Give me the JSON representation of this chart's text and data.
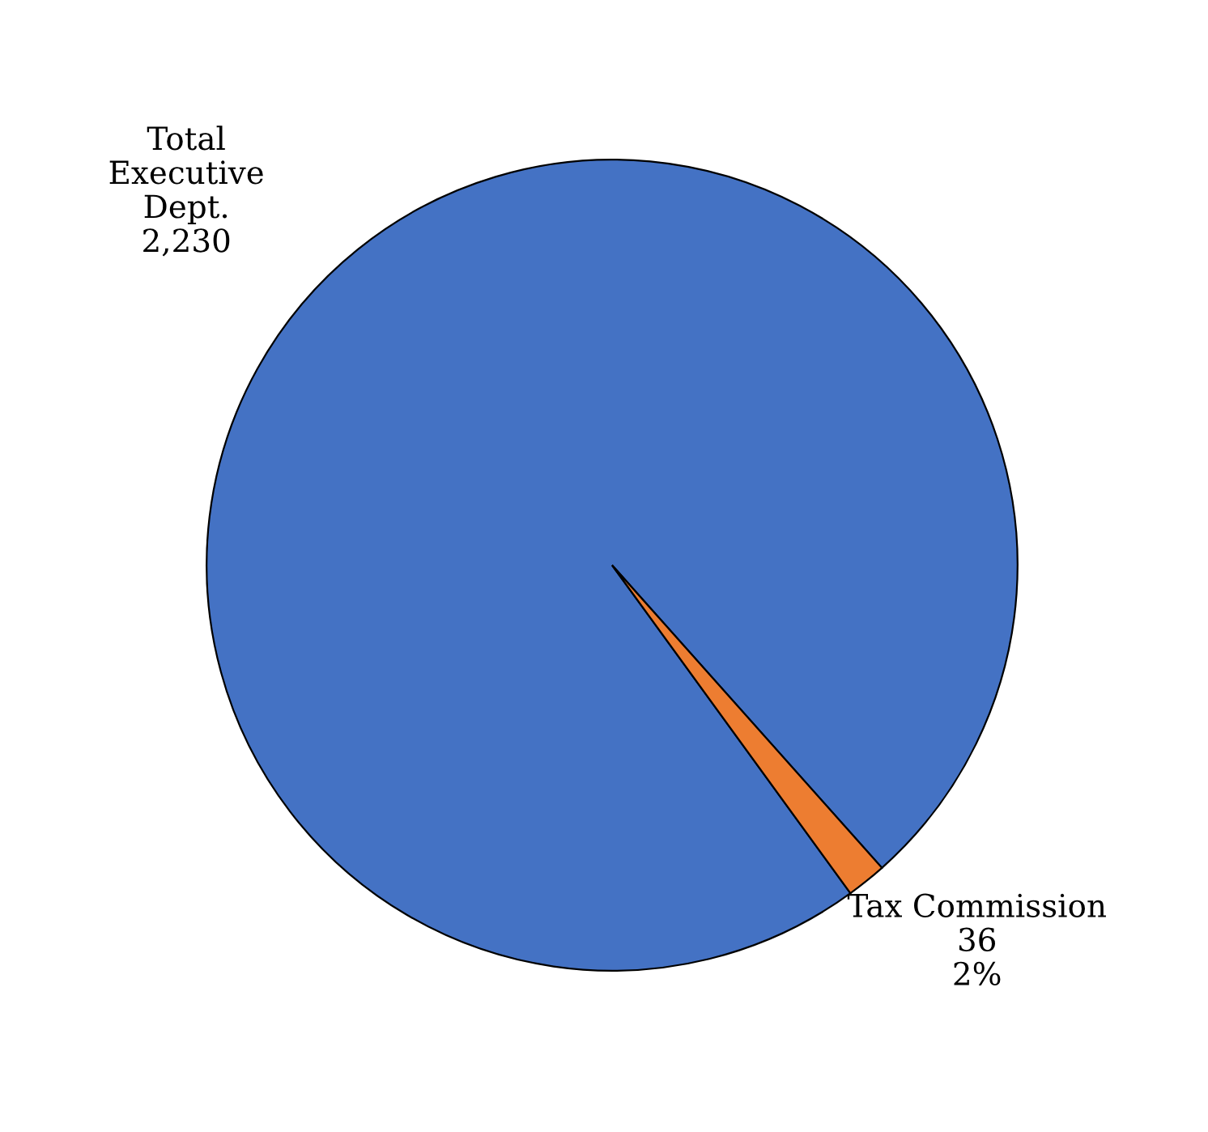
{
  "chart_data": {
    "type": "pie",
    "categories": [
      "Total\nExecutive\nDept.",
      "Tax Commission"
    ],
    "values": [
      2230,
      36
    ],
    "value_labels": [
      "2,230",
      "36\n2%"
    ],
    "colors": [
      "#4472c4",
      "#ed7d31"
    ]
  }
}
